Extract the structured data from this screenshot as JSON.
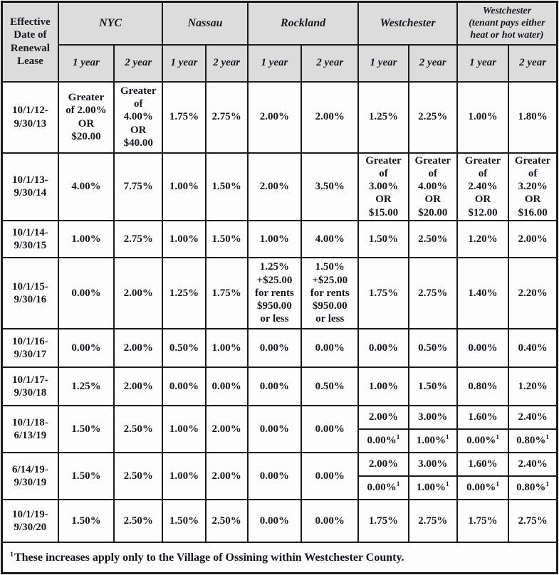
{
  "colors": {
    "border": "#1a1a1a",
    "header_background": "#dcdcdc",
    "cell_background": "#fdfdfd",
    "text": "#16161e"
  },
  "table": {
    "corner_header": "Effective\nDate of\nRenewal\nLease",
    "regions": [
      {
        "name": "NYC"
      },
      {
        "name": "Nassau"
      },
      {
        "name": "Rockland"
      },
      {
        "name": "Westchester"
      },
      {
        "name": "Westchester\n(tenant pays either\nheat or hot water)"
      }
    ],
    "year_labels": [
      "1 year",
      "2 year"
    ],
    "rows": [
      {
        "dates": "10/1/12-\n9/30/13",
        "values": [
          "Greater\nof 2.00%\nOR\n$20.00",
          "Greater\nof\n4.00%\nOR\n$40.00",
          "1.75%",
          "2.75%",
          "2.00%",
          "2.00%",
          "1.25%",
          "2.25%",
          "1.00%",
          "1.80%"
        ]
      },
      {
        "dates": "10/1/13-\n9/30/14",
        "values": [
          "4.00%",
          "7.75%",
          "1.00%",
          "1.50%",
          "2.00%",
          "3.50%",
          "Greater\nof\n3.00%\nOR\n$15.00",
          "Greater\nof\n4.00%\nOR\n$20.00",
          "Greater\nof\n2.40%\nOR\n$12.00",
          "Greater\nof\n3.20%\nOR\n$16.00"
        ]
      },
      {
        "dates": "10/1/14-\n9/30/15",
        "values": [
          "1.00%",
          "2.75%",
          "1.00%",
          "1.50%",
          "1.00%",
          "4.00%",
          "1.50%",
          "2.50%",
          "1.20%",
          "2.00%"
        ]
      },
      {
        "dates": "10/1/15-\n9/30/16",
        "values": [
          "0.00%",
          "2.00%",
          "1.25%",
          "1.75%",
          "1.25%\n+$25.00\nfor rents\n$950.00\nor less",
          "1.50%\n+$25.00\nfor rents\n$950.00\nor less",
          "1.75%",
          "2.75%",
          "1.40%",
          "2.20%"
        ]
      },
      {
        "dates": "10/1/16-\n9/30/17",
        "values": [
          "0.00%",
          "2.00%",
          "0.50%",
          "1.00%",
          "0.00%",
          "0.00%",
          "0.00%",
          "0.50%",
          "0.00%",
          "0.40%"
        ]
      },
      {
        "dates": "10/1/17-\n9/30/18",
        "values": [
          "1.25%",
          "2.00%",
          "0.00%",
          "0.00%",
          "0.00%",
          "0.50%",
          "1.00%",
          "1.50%",
          "0.80%",
          "1.20%"
        ]
      },
      {
        "dates": "10/1/18-\n6/13/19",
        "values": [
          "1.50%",
          "2.50%",
          "1.00%",
          "2.00%",
          "0.00%",
          "0.00%"
        ],
        "westchester_split": {
          "top": [
            "2.00%",
            "3.00%",
            "1.60%",
            "2.40%"
          ],
          "bottom": [
            {
              "value": "0.00%",
              "sup": "1"
            },
            {
              "value": "1.00%",
              "sup": "1"
            },
            {
              "value": "0.00%",
              "sup": "1"
            },
            {
              "value": "0.80%",
              "sup": "1"
            }
          ]
        }
      },
      {
        "dates": "6/14/19-\n9/30/19",
        "values": [
          "1.50%",
          "2.50%",
          "1.00%",
          "2.00%",
          "0.00%",
          "0.00%"
        ],
        "westchester_split": {
          "top": [
            "2.00%",
            "3.00%",
            "1.60%",
            "2.40%"
          ],
          "bottom": [
            {
              "value": "0.00%",
              "sup": "1"
            },
            {
              "value": "1.00%",
              "sup": "1"
            },
            {
              "value": "0.00%",
              "sup": "1"
            },
            {
              "value": "0.80%",
              "sup": "1"
            }
          ]
        }
      },
      {
        "dates": "10/1/19-\n9/30/20",
        "values": [
          "1.50%",
          "2.50%",
          "1.50%",
          "2.50%",
          "0.00%",
          "0.00%",
          "1.75%",
          "2.75%",
          "1.75%",
          "2.75%"
        ]
      }
    ],
    "footnote": {
      "sup": "1",
      "text": "These increases apply only to the Village of Ossining within Westchester County."
    }
  }
}
